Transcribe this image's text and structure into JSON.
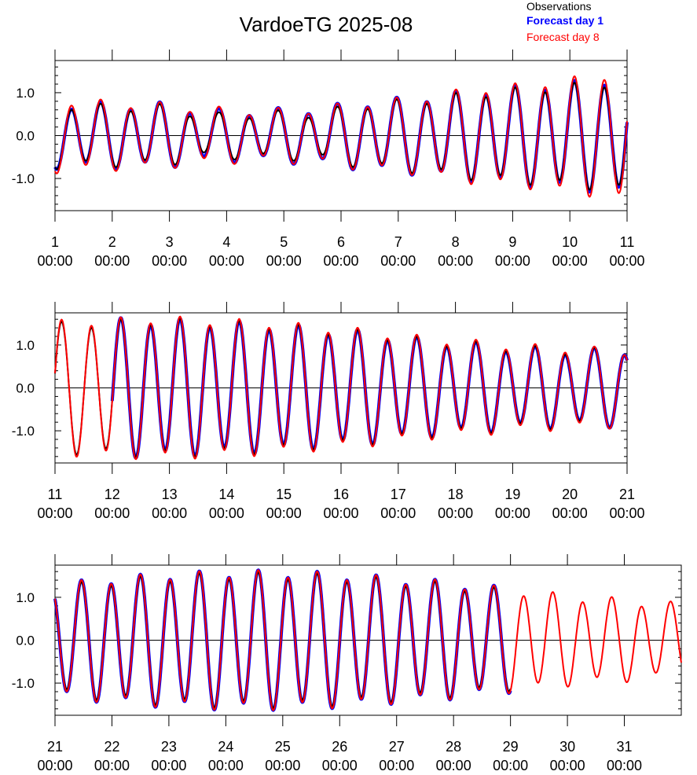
{
  "title": "VardoeTG 2025-08",
  "legend": [
    {
      "label": "Observations",
      "color": "#000000"
    },
    {
      "label": "Forecast day 1",
      "color": "#0000ff"
    },
    {
      "label": "Forecast day 8",
      "color": "#ff0000"
    }
  ],
  "chart_data": [
    {
      "type": "line",
      "x_range": [
        1,
        11
      ],
      "ylim": [
        -1.75,
        1.75
      ],
      "y_ticks": [
        -1.0,
        0.0,
        1.0
      ],
      "y_tick_labels": [
        "-1.0",
        "0.0",
        "1.0"
      ],
      "x_ticks": [
        1,
        2,
        3,
        4,
        5,
        6,
        7,
        8,
        9,
        10,
        11
      ],
      "x_tick_labels": [
        "1\n00:00",
        "2\n00:00",
        "3\n00:00",
        "4\n00:00",
        "5\n00:00",
        "6\n00:00",
        "7\n00:00",
        "8\n00:00",
        "9\n00:00",
        "10\n00:00",
        "11\n00:00"
      ],
      "series": [
        {
          "name": "Observations",
          "color": "#000000",
          "x_range": [
            1,
            11
          ],
          "amps": [
            0.7,
            0.65,
            0.65,
            0.45,
            0.5,
            0.5,
            0.7,
            0.8,
            0.95,
            1.05,
            1.15,
            1.25
          ]
        },
        {
          "name": "Forecast day 1",
          "color": "#0000ff",
          "x_range": [
            1,
            11
          ],
          "amps": [
            0.7,
            0.7,
            0.7,
            0.55,
            0.55,
            0.6,
            0.75,
            0.85,
            1.0,
            1.1,
            1.2,
            1.3
          ]
        },
        {
          "name": "Forecast day 8",
          "color": "#ff0000",
          "x_range": [
            1,
            11
          ],
          "amps": [
            0.8,
            0.75,
            0.7,
            0.6,
            0.55,
            0.6,
            0.75,
            0.85,
            1.05,
            1.15,
            1.3,
            1.45
          ]
        }
      ]
    },
    {
      "type": "line",
      "x_range": [
        11,
        21
      ],
      "ylim": [
        -1.75,
        1.75
      ],
      "y_ticks": [
        -1.0,
        0.0,
        1.0
      ],
      "y_tick_labels": [
        "-1.0",
        "0.0",
        "1.0"
      ],
      "x_ticks": [
        11,
        12,
        13,
        14,
        15,
        16,
        17,
        18,
        19,
        20,
        21
      ],
      "x_tick_labels": [
        "11\n00:00",
        "12\n00:00",
        "13\n00:00",
        "14\n00:00",
        "15\n00:00",
        "16\n00:00",
        "17\n00:00",
        "18\n00:00",
        "19\n00:00",
        "20\n00:00",
        "21\n00:00"
      ],
      "series": [
        {
          "name": "Observations",
          "color": "#000000",
          "x_range": [
            11,
            21
          ],
          "amps": [
            1.45,
            1.5,
            1.55,
            1.5,
            1.45,
            1.35,
            1.25,
            1.1,
            1.0,
            0.9,
            0.85,
            0.85
          ]
        },
        {
          "name": "Forecast day 1",
          "color": "#0000ff",
          "x_range": [
            12,
            21
          ],
          "amps": [
            1.55,
            1.55,
            1.5,
            1.45,
            1.35,
            1.25,
            1.1,
            1.0,
            0.9,
            0.85,
            0.85
          ]
        },
        {
          "name": "Forecast day 8",
          "color": "#ff0000",
          "x_range": [
            11,
            21
          ],
          "amps": [
            1.5,
            1.55,
            1.6,
            1.55,
            1.5,
            1.4,
            1.3,
            1.15,
            1.05,
            0.95,
            0.9,
            0.85
          ]
        }
      ]
    },
    {
      "type": "line",
      "x_range": [
        21,
        32
      ],
      "ylim": [
        -1.75,
        1.75
      ],
      "y_ticks": [
        -1.0,
        0.0,
        1.0
      ],
      "y_tick_labels": [
        "-1.0",
        "0.0",
        "1.0"
      ],
      "x_ticks": [
        21,
        22,
        23,
        24,
        25,
        26,
        27,
        28,
        29,
        30,
        31
      ],
      "x_tick_labels": [
        "21\n00:00",
        "22\n00:00",
        "23\n00:00",
        "24\n00:00",
        "25\n00:00",
        "26\n00:00",
        "27\n00:00",
        "28\n00:00",
        "29\n00:00",
        "30\n00:00",
        "31\n00:00"
      ],
      "series": [
        {
          "name": "Observations",
          "color": "#000000",
          "x_range": [
            21,
            29
          ],
          "amps": [
            1.2,
            1.35,
            1.45,
            1.5,
            1.5,
            1.45,
            1.35,
            1.25,
            1.1
          ]
        },
        {
          "name": "Forecast day 1",
          "color": "#0000ff",
          "x_range": [
            21,
            29
          ],
          "amps": [
            1.25,
            1.4,
            1.5,
            1.55,
            1.55,
            1.5,
            1.4,
            1.3,
            1.15
          ]
        },
        {
          "name": "Forecast day 8",
          "color": "#ff0000",
          "x_range": [
            21,
            32
          ],
          "amps": [
            1.25,
            1.4,
            1.5,
            1.55,
            1.55,
            1.5,
            1.4,
            1.3,
            1.15,
            1.0,
            0.9,
            0.8
          ]
        }
      ]
    }
  ]
}
